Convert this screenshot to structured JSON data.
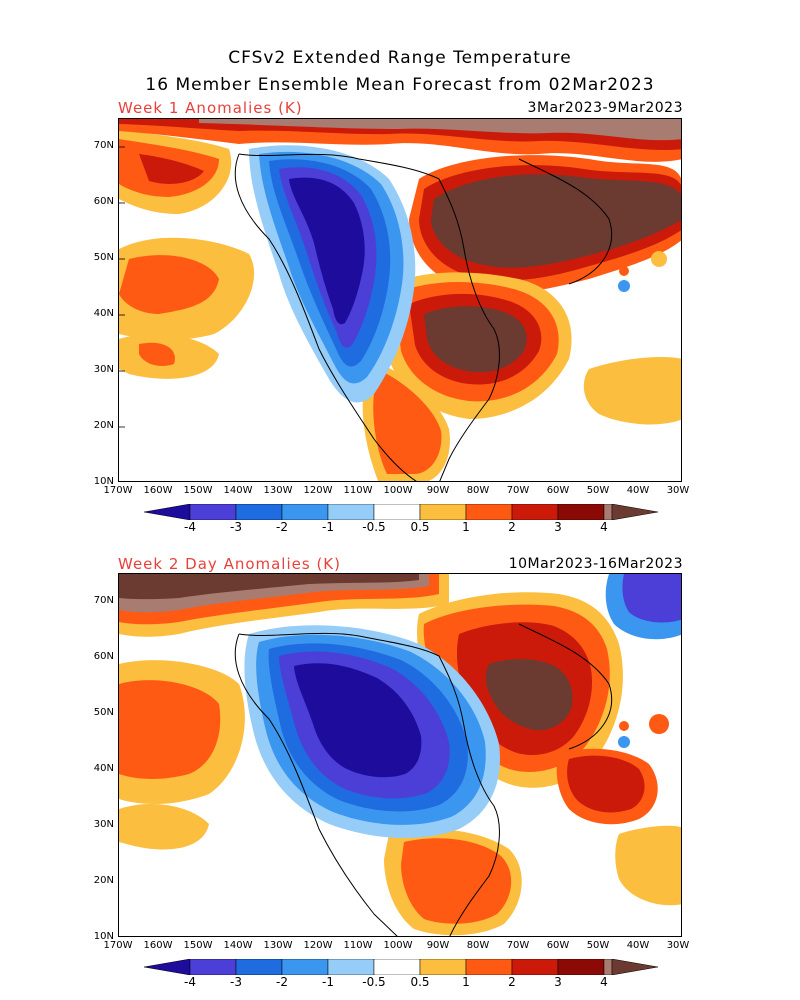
{
  "figure": {
    "title_line1": "CFSv2 Extended Range Temperature",
    "title_line2": "16 Member Ensemble Mean Forecast from 02Mar2023"
  },
  "panels": [
    {
      "label": "Week 1 Anomalies (K)",
      "date_range": "3Mar2023-9Mar2023"
    },
    {
      "label": "Week 2 Day Anomalies (K)",
      "date_range": "10Mar2023-16Mar2023"
    }
  ],
  "axes": {
    "lat_labels": [
      "70N",
      "60N",
      "50N",
      "40N",
      "30N",
      "20N",
      "10N"
    ],
    "lon_labels": [
      "170W",
      "160W",
      "150W",
      "140W",
      "130W",
      "120W",
      "110W",
      "100W",
      "90W",
      "80W",
      "70W",
      "60W",
      "50W",
      "40W",
      "30W"
    ]
  },
  "colorbar": {
    "labels": [
      "-4",
      "-3",
      "-2",
      "-1",
      "-0.5",
      "0.5",
      "1",
      "2",
      "3",
      "4"
    ],
    "colors": {
      "m4": "#1e0c9c",
      "m3": "#4b3fd8",
      "m2": "#1f6be0",
      "m1": "#3b96f0",
      "m05": "#96cdf8",
      "zero": "#ffffff",
      "p05": "#fbbe3e",
      "p1": "#ff5a14",
      "p2": "#cc1a0a",
      "p3": "#8c0a06",
      "p4": "#a87c70",
      "p5": "#6b3a30"
    }
  },
  "chart_data": {
    "type": "heatmap",
    "units": "K",
    "lat_range": [
      10,
      75
    ],
    "lon_range": [
      -170,
      -30
    ]
  }
}
